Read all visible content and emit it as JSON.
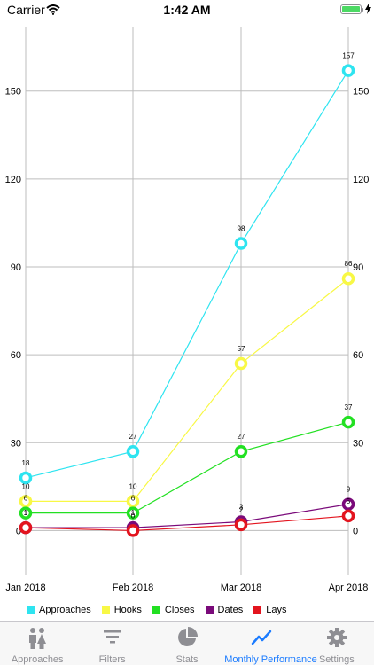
{
  "status_bar": {
    "carrier": "Carrier",
    "time": "1:42 AM"
  },
  "colors": {
    "approaches": "#2ee4f0",
    "hooks": "#f8f845",
    "closes": "#22e022",
    "dates": "#7a0a7a",
    "lays": "#e3141e",
    "tab_active": "#1a7bff",
    "tab_inactive": "#8e8e93"
  },
  "chart_data": {
    "type": "line",
    "categories": [
      "Jan 2018",
      "Feb 2018",
      "Mar 2018",
      "Apr 2018"
    ],
    "ylim": [
      -15,
      172
    ],
    "yticks": [
      0,
      30,
      60,
      90,
      120,
      150
    ],
    "grid": true,
    "legend_position": "bottom-left",
    "series": [
      {
        "name": "Approaches",
        "values": [
          18,
          27,
          98,
          157
        ],
        "labels": [
          "18",
          "27",
          "98",
          "157"
        ],
        "color": "#2ee4f0"
      },
      {
        "name": "Hooks",
        "values": [
          10,
          10,
          57,
          86
        ],
        "labels": [
          "10",
          "10",
          "57",
          "86"
        ],
        "color": "#f8f845"
      },
      {
        "name": "Closes",
        "values": [
          6,
          6,
          27,
          37
        ],
        "labels": [
          "6",
          "6",
          "27",
          "37"
        ],
        "color": "#22e022"
      },
      {
        "name": "Dates",
        "values": [
          1,
          1,
          3,
          9
        ],
        "labels": [
          "1",
          "1",
          "3",
          "9"
        ],
        "color": "#7a0a7a"
      },
      {
        "name": "Lays",
        "values": [
          1,
          0,
          2,
          5
        ],
        "labels": [
          "1",
          "0",
          "2",
          "5"
        ],
        "color": "#e3141e"
      }
    ]
  },
  "tabs": [
    {
      "label": "Approaches",
      "icon": "people-icon",
      "active": false
    },
    {
      "label": "Filters",
      "icon": "filter-icon",
      "active": false
    },
    {
      "label": "Stats",
      "icon": "pie-chart-icon",
      "active": false
    },
    {
      "label": "Monthly Performance",
      "icon": "line-chart-icon",
      "active": true
    },
    {
      "label": "Settings",
      "icon": "gear-icon",
      "active": false
    }
  ]
}
